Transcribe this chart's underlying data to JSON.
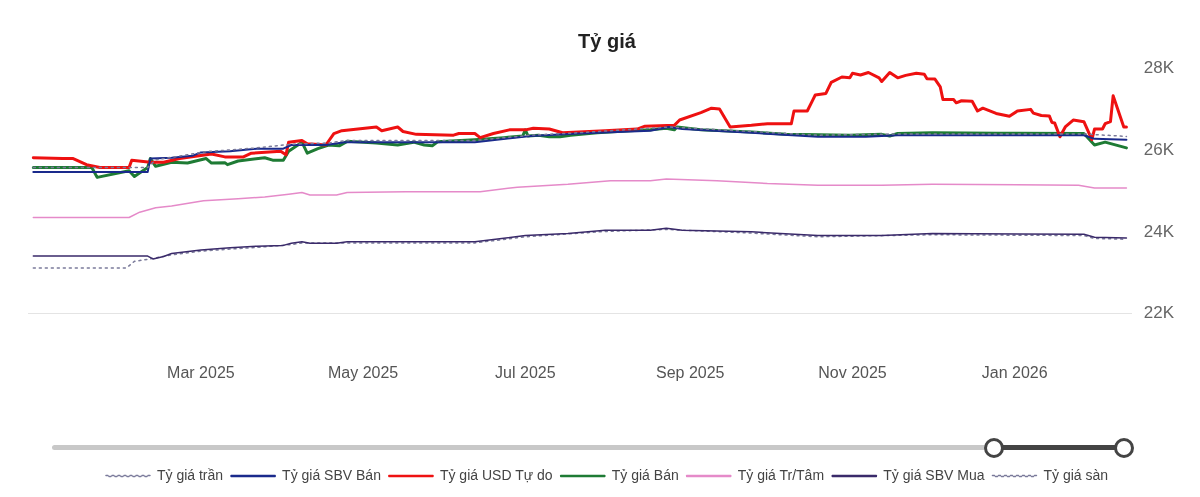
{
  "chart_data": {
    "type": "line",
    "title": "Tỷ giá",
    "legend": "bottom",
    "marker": "none",
    "grid": false,
    "xlim": [
      "2024-12-26",
      "2026-02-14"
    ],
    "xticks": [
      {
        "value": "2025-03-01",
        "label": "Mar 2025"
      },
      {
        "value": "2025-05-01",
        "label": "May 2025"
      },
      {
        "value": "2025-07-01",
        "label": "Jul 2025"
      },
      {
        "value": "2025-09-01",
        "label": "Sep 2025"
      },
      {
        "value": "2025-11-01",
        "label": "Nov 2025"
      },
      {
        "value": "2026-01-01",
        "label": "Jan 2026"
      }
    ],
    "ylim": [
      22000,
      28000
    ],
    "yticks": [
      {
        "value": 22000,
        "label": "22K"
      },
      {
        "value": 24000,
        "label": "24K"
      },
      {
        "value": 26000,
        "label": "26K"
      },
      {
        "value": 28000,
        "label": "28K"
      }
    ],
    "series": [
      {
        "name": "Tỷ giá trần",
        "color": "#7a7a9a",
        "line_style": "dotted",
        "x": [
          "2024-12-28",
          "2025-02-09",
          "2025-02-12",
          "2025-02-22",
          "2025-03-03",
          "2025-03-12",
          "2025-03-22",
          "2025-04-04",
          "2025-04-18",
          "2025-04-25",
          "2025-06-12",
          "2025-07-03",
          "2025-07-21",
          "2025-08-24",
          "2025-09-24",
          "2025-10-19",
          "2025-11-18",
          "2026-01-27",
          "2026-02-12"
        ],
        "values": [
          25570,
          25570,
          25760,
          25860,
          25960,
          26000,
          26050,
          26140,
          26170,
          26230,
          26230,
          26360,
          26420,
          26560,
          26450,
          26360,
          26390,
          26390,
          26330
        ]
      },
      {
        "name": "Tỷ giá SBV Bán",
        "color": "#1a2a8c",
        "line_style": "solid",
        "x": [
          "2024-12-28",
          "2025-02-09",
          "2025-02-10",
          "2025-02-18",
          "2025-02-26",
          "2025-03-01",
          "2025-03-12",
          "2025-03-22",
          "2025-04-01",
          "2025-04-04",
          "2025-04-17",
          "2025-04-24",
          "2025-06-12",
          "2025-07-03",
          "2025-07-21",
          "2025-08-17",
          "2025-08-24",
          "2025-08-29",
          "2025-09-24",
          "2025-10-19",
          "2025-11-06",
          "2025-11-18",
          "2026-01-27",
          "2026-01-31",
          "2026-02-12"
        ],
        "values": [
          25460,
          25460,
          25790,
          25810,
          25860,
          25940,
          25970,
          26030,
          26030,
          26120,
          26120,
          26190,
          26190,
          26340,
          26400,
          26470,
          26560,
          26510,
          26420,
          26320,
          26320,
          26360,
          26360,
          26270,
          26250
        ]
      },
      {
        "name": "Tỷ giá USD Tự do",
        "color": "#ee1111",
        "line_style": "solid",
        "x": [
          "2024-12-28",
          "2025-01-08",
          "2025-01-12",
          "2025-01-17",
          "2025-01-22",
          "2025-02-02",
          "2025-02-03",
          "2025-02-10",
          "2025-02-15",
          "2025-02-21",
          "2025-03-05",
          "2025-03-10",
          "2025-03-17",
          "2025-03-20",
          "2025-03-31",
          "2025-04-02",
          "2025-04-03",
          "2025-04-08",
          "2025-04-10",
          "2025-04-17",
          "2025-04-20",
          "2025-04-23",
          "2025-05-06",
          "2025-05-08",
          "2025-05-14",
          "2025-05-16",
          "2025-05-21",
          "2025-06-04",
          "2025-06-06",
          "2025-06-12",
          "2025-06-14",
          "2025-06-19",
          "2025-06-25",
          "2025-07-01",
          "2025-07-04",
          "2025-07-10",
          "2025-07-15",
          "2025-07-31",
          "2025-08-12",
          "2025-08-15",
          "2025-08-26",
          "2025-08-28",
          "2025-09-05",
          "2025-09-09",
          "2025-09-12",
          "2025-09-16",
          "2025-09-24",
          "2025-09-30",
          "2025-10-09",
          "2025-10-10",
          "2025-10-15",
          "2025-10-17",
          "2025-10-18",
          "2025-10-22",
          "2025-10-24",
          "2025-10-28",
          "2025-10-31",
          "2025-11-01",
          "2025-11-04",
          "2025-11-07",
          "2025-11-11",
          "2025-11-12",
          "2025-11-15",
          "2025-11-18",
          "2025-11-21",
          "2025-11-25",
          "2025-11-28",
          "2025-11-29",
          "2025-12-02",
          "2025-12-04",
          "2025-12-05",
          "2025-12-09",
          "2025-12-10",
          "2025-12-12",
          "2025-12-16",
          "2025-12-18",
          "2025-12-20",
          "2025-12-25",
          "2025-12-30",
          "2026-01-02",
          "2026-01-07",
          "2026-01-08",
          "2026-01-11",
          "2026-01-14",
          "2026-01-15",
          "2026-01-16",
          "2026-01-18",
          "2026-01-20",
          "2026-01-23",
          "2026-01-27",
          "2026-01-30",
          "2026-01-31",
          "2026-02-03",
          "2026-02-04",
          "2026-02-06",
          "2026-02-07",
          "2026-02-11",
          "2026-02-12"
        ],
        "values": [
          25810,
          25790,
          25790,
          25640,
          25570,
          25570,
          25750,
          25700,
          25700,
          25790,
          25900,
          25830,
          25830,
          25920,
          25970,
          25880,
          26190,
          26230,
          26150,
          26120,
          26400,
          26470,
          26560,
          26470,
          26560,
          26450,
          26380,
          26360,
          26400,
          26400,
          26300,
          26400,
          26490,
          26490,
          26530,
          26510,
          26420,
          26470,
          26510,
          26580,
          26600,
          26730,
          26910,
          27020,
          27000,
          26560,
          26600,
          26640,
          26640,
          26950,
          26950,
          27210,
          27340,
          27380,
          27650,
          27780,
          27760,
          27870,
          27830,
          27890,
          27760,
          27670,
          27890,
          27760,
          27820,
          27870,
          27850,
          27740,
          27730,
          27540,
          27230,
          27230,
          27150,
          27200,
          27190,
          26950,
          27020,
          26890,
          26820,
          26950,
          26990,
          26900,
          26840,
          26830,
          26670,
          26660,
          26320,
          26560,
          26730,
          26690,
          26250,
          26510,
          26510,
          26640,
          26690,
          27320,
          26560,
          26560
        ]
      },
      {
        "name": "Tỷ giá Bán",
        "color": "#1e7b34",
        "line_style": "solid",
        "x": [
          "2024-12-28",
          "2025-01-19",
          "2025-01-21",
          "2025-02-02",
          "2025-02-04",
          "2025-02-09",
          "2025-02-10",
          "2025-02-12",
          "2025-02-18",
          "2025-02-24",
          "2025-03-03",
          "2025-03-05",
          "2025-03-10",
          "2025-03-11",
          "2025-03-15",
          "2025-03-25",
          "2025-03-28",
          "2025-04-01",
          "2025-04-03",
          "2025-04-08",
          "2025-04-10",
          "2025-04-14",
          "2025-04-18",
          "2025-04-22",
          "2025-04-25",
          "2025-05-06",
          "2025-05-14",
          "2025-05-20",
          "2025-05-24",
          "2025-05-27",
          "2025-05-29",
          "2025-06-12",
          "2025-06-23",
          "2025-06-30",
          "2025-07-01",
          "2025-07-02",
          "2025-07-06",
          "2025-07-10",
          "2025-07-14",
          "2025-07-18",
          "2025-07-28",
          "2025-08-09",
          "2025-08-17",
          "2025-08-23",
          "2025-08-26",
          "2025-08-27",
          "2025-09-05",
          "2025-09-24",
          "2025-10-07",
          "2025-10-31",
          "2025-11-12",
          "2025-11-15",
          "2025-11-18",
          "2025-12-01",
          "2025-12-25",
          "2026-01-27",
          "2026-01-31",
          "2026-02-04",
          "2026-02-12"
        ],
        "values": [
          25570,
          25570,
          25330,
          25490,
          25350,
          25570,
          25790,
          25600,
          25700,
          25680,
          25790,
          25680,
          25690,
          25640,
          25730,
          25810,
          25750,
          25750,
          25970,
          26190,
          25920,
          26030,
          26120,
          26100,
          26210,
          26170,
          26120,
          26190,
          26120,
          26100,
          26200,
          26250,
          26300,
          26340,
          26490,
          26340,
          26360,
          26320,
          26320,
          26360,
          26420,
          26470,
          26490,
          26530,
          26490,
          26560,
          26490,
          26440,
          26380,
          26360,
          26380,
          26340,
          26400,
          26420,
          26410,
          26400,
          26120,
          26190,
          26050
        ]
      },
      {
        "name": "Tỷ giá Tr/Tâm",
        "color": "#e58ac9",
        "line_style": "solid",
        "x": [
          "2024-12-28",
          "2025-02-02",
          "2025-02-06",
          "2025-02-12",
          "2025-02-18",
          "2025-03-02",
          "2025-03-15",
          "2025-03-25",
          "2025-04-03",
          "2025-04-08",
          "2025-04-11",
          "2025-04-21",
          "2025-04-25",
          "2025-05-17",
          "2025-06-14",
          "2025-06-28",
          "2025-07-17",
          "2025-08-02",
          "2025-08-17",
          "2025-08-23",
          "2025-09-11",
          "2025-09-30",
          "2025-10-19",
          "2025-11-12",
          "2025-12-01",
          "2026-01-25",
          "2026-01-31",
          "2026-02-12"
        ],
        "values": [
          24350,
          24350,
          24480,
          24590,
          24630,
          24760,
          24810,
          24850,
          24920,
          24960,
          24900,
          24900,
          24960,
          24980,
          24980,
          25090,
          25160,
          25250,
          25250,
          25290,
          25250,
          25180,
          25140,
          25140,
          25160,
          25140,
          25070,
          25070
        ]
      },
      {
        "name": "Tỷ giá SBV Mua",
        "color": "#3a2a6a",
        "line_style": "solid",
        "x": [
          "2024-12-28",
          "2025-02-09",
          "2025-02-11",
          "2025-02-15",
          "2025-02-18",
          "2025-03-01",
          "2025-03-12",
          "2025-03-22",
          "2025-04-01",
          "2025-04-04",
          "2025-04-08",
          "2025-04-11",
          "2025-04-21",
          "2025-04-25",
          "2025-06-12",
          "2025-07-01",
          "2025-07-17",
          "2025-07-31",
          "2025-08-17",
          "2025-08-23",
          "2025-08-29",
          "2025-09-24",
          "2025-10-19",
          "2025-11-12",
          "2025-12-01",
          "2026-01-27",
          "2026-01-31",
          "2026-02-12"
        ],
        "values": [
          23410,
          23410,
          23340,
          23400,
          23470,
          23560,
          23610,
          23650,
          23670,
          23720,
          23760,
          23720,
          23720,
          23760,
          23760,
          23910,
          23960,
          24040,
          24040,
          24090,
          24040,
          24000,
          23910,
          23910,
          23960,
          23940,
          23870,
          23850
        ]
      },
      {
        "name": "Tỷ giá sàn",
        "color": "#7a7a9a",
        "line_style": "dotted",
        "x": [
          "2024-12-28",
          "2025-02-01",
          "2025-02-04",
          "2025-02-10",
          "2025-02-18",
          "2025-03-01",
          "2025-03-12",
          "2025-03-22",
          "2025-04-04",
          "2025-04-08",
          "2025-04-25",
          "2025-06-12",
          "2025-07-01",
          "2025-07-31",
          "2025-08-23",
          "2025-09-24",
          "2025-10-19",
          "2025-12-01",
          "2026-01-27",
          "2026-01-31",
          "2026-02-12"
        ],
        "values": [
          23120,
          23120,
          23280,
          23340,
          23440,
          23530,
          23580,
          23620,
          23690,
          23730,
          23730,
          23730,
          23880,
          24010,
          24060,
          23970,
          23880,
          23930,
          23910,
          23840,
          23820
        ]
      }
    ]
  }
}
